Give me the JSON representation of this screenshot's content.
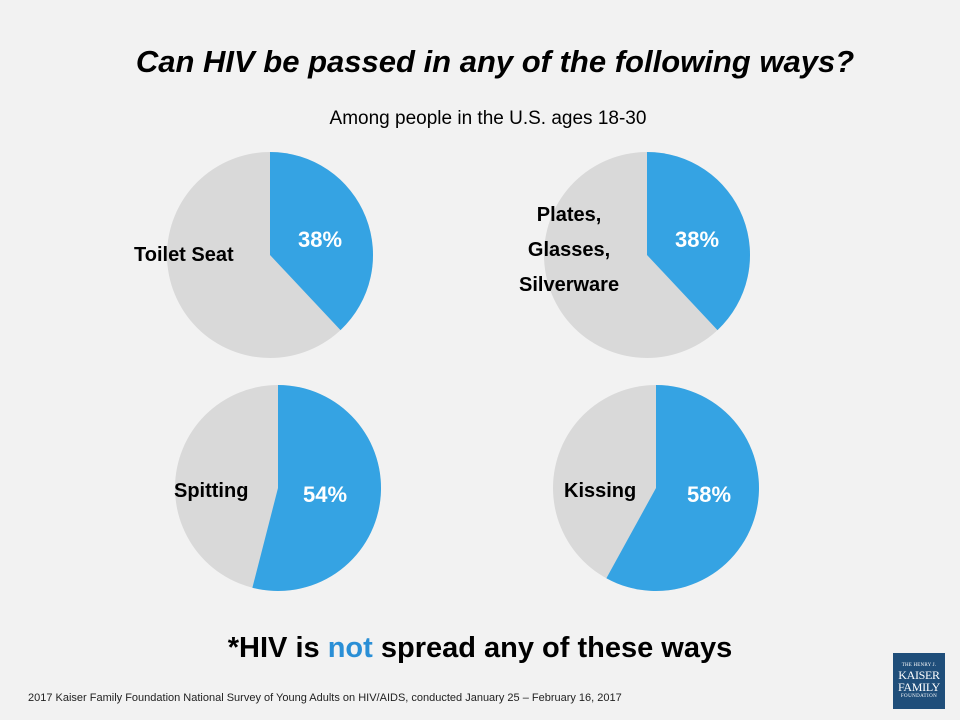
{
  "title": "Can HIV be passed in any of the following ways?",
  "subtitle": "Among people in the U.S. ages 18-30",
  "colors": {
    "yes": "#35a3e3",
    "rest": "#d9d9d9",
    "background": "#f2f2f2"
  },
  "chart_data": [
    {
      "type": "pie",
      "label": "Toilet Seat",
      "value": 38,
      "value_label": "38%"
    },
    {
      "type": "pie",
      "label": "Plates, Glasses, Silverware",
      "label_lines": [
        "Plates,",
        "Glasses,",
        "Silverware"
      ],
      "value": 38,
      "value_label": "38%"
    },
    {
      "type": "pie",
      "label": "Spitting",
      "value": 54,
      "value_label": "54%"
    },
    {
      "type": "pie",
      "label": "Kissing",
      "value": 58,
      "value_label": "58%"
    }
  ],
  "footnote": {
    "prefix": "*HIV is ",
    "highlight": "not",
    "suffix": " spread any of these ways"
  },
  "source": "2017 Kaiser Family Foundation National Survey of Young Adults on HIV/AIDS, conducted January 25 – February 16, 2017",
  "logo": {
    "line1": "THE HENRY J.",
    "line2": "KAISER",
    "line3": "FAMILY",
    "line4": "FOUNDATION"
  }
}
